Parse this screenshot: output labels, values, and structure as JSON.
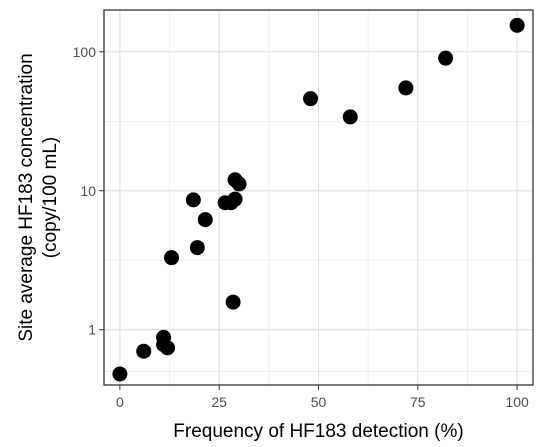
{
  "chart_data": {
    "type": "scatter",
    "xlabel": "Frequency of HF183 detection (%)",
    "ylabel_lines": [
      "Site average HF183 concentration",
      "(copy/100 mL)"
    ],
    "xlim": [
      -4,
      104
    ],
    "ylim": [
      0.4,
      200
    ],
    "yscale": "log",
    "grid": true,
    "x_ticks": [
      0,
      25,
      50,
      75,
      100
    ],
    "x_tick_labels": [
      "0",
      "25",
      "50",
      "75",
      "100"
    ],
    "y_ticks": [
      1,
      10,
      100
    ],
    "y_tick_labels": [
      "1",
      "10",
      "100"
    ],
    "y_minor_ticks": [
      0.5,
      3.16,
      31.6
    ],
    "marker_color": "#000000",
    "points": [
      {
        "x": 0,
        "y": 0.48
      },
      {
        "x": 6,
        "y": 0.7
      },
      {
        "x": 11,
        "y": 0.78
      },
      {
        "x": 11,
        "y": 0.88
      },
      {
        "x": 12,
        "y": 0.74
      },
      {
        "x": 13,
        "y": 3.3
      },
      {
        "x": 18.5,
        "y": 8.6
      },
      {
        "x": 19.5,
        "y": 3.9
      },
      {
        "x": 21.5,
        "y": 6.2
      },
      {
        "x": 26.5,
        "y": 8.2
      },
      {
        "x": 28,
        "y": 8.2
      },
      {
        "x": 28.5,
        "y": 1.58
      },
      {
        "x": 29,
        "y": 8.7
      },
      {
        "x": 29,
        "y": 12
      },
      {
        "x": 30,
        "y": 11.2
      },
      {
        "x": 48,
        "y": 46
      },
      {
        "x": 58,
        "y": 34
      },
      {
        "x": 72,
        "y": 55
      },
      {
        "x": 82,
        "y": 90
      },
      {
        "x": 100,
        "y": 155
      }
    ]
  }
}
